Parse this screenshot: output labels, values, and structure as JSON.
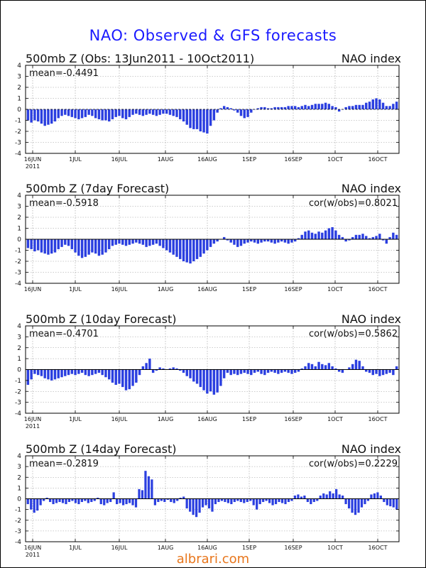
{
  "title": "NAO: Observed & GFS forecasts",
  "watermark": "albrari.com",
  "colors": {
    "bar": "#2b3fe0",
    "title": "#1a1aff",
    "watermark": "#e8761c",
    "grid": "#9a9a9a"
  },
  "chart_data": [
    {
      "type": "bar",
      "title": "500mb Z (Obs: 13Jun2011 - 10Oct2011)",
      "right_label": "NAO index",
      "mean_label": "mean=-0.4491",
      "cor_label": "",
      "ylim": [
        -4,
        4
      ],
      "yticks": [
        "4",
        "3",
        "2",
        "1",
        "0",
        "-1",
        "-2",
        "-3",
        "-4"
      ],
      "xticks": [
        "16JUN",
        "1JUL",
        "16JUL",
        "1AUG",
        "16AUG",
        "1SEP",
        "16SEP",
        "1OCT",
        "16OCT"
      ],
      "xtick_year": "2011",
      "grid": true,
      "zero_line": "dashed",
      "values": [
        -1.0,
        -1.2,
        -1.0,
        -1.1,
        -1.3,
        -1.5,
        -1.4,
        -1.3,
        -1.1,
        -0.8,
        -0.6,
        -0.5,
        -0.6,
        -0.7,
        -0.8,
        -0.9,
        -0.8,
        -0.7,
        -0.5,
        -0.6,
        -0.8,
        -0.9,
        -1.0,
        -1.0,
        -1.1,
        -0.9,
        -0.7,
        -0.6,
        -0.8,
        -0.9,
        -0.7,
        -0.5,
        -0.4,
        -0.5,
        -0.6,
        -0.5,
        -0.4,
        -0.5,
        -0.6,
        -0.5,
        -0.4,
        -0.4,
        -0.5,
        -0.6,
        -0.7,
        -0.9,
        -1.1,
        -1.4,
        -1.7,
        -1.8,
        -1.8,
        -2.0,
        -2.1,
        -2.2,
        -1.5,
        -1.0,
        -0.3,
        0.1,
        0.3,
        0.2,
        0.1,
        -0.1,
        -0.3,
        -0.6,
        -0.8,
        -0.7,
        -0.3,
        0.0,
        0.1,
        0.2,
        0.2,
        0.1,
        0.1,
        0.2,
        0.2,
        0.2,
        0.2,
        0.3,
        0.3,
        0.3,
        0.2,
        0.3,
        0.4,
        0.3,
        0.4,
        0.5,
        0.5,
        0.5,
        0.6,
        0.5,
        0.3,
        0.2,
        -0.2,
        0.0,
        0.2,
        0.3,
        0.3,
        0.4,
        0.4,
        0.4,
        0.6,
        0.7,
        0.9,
        1.0,
        0.9,
        0.6,
        0.3,
        0.3,
        0.5,
        0.7
      ]
    },
    {
      "type": "bar",
      "title": "500mb Z (7day Forecast)",
      "right_label": "NAO index",
      "mean_label": "mean=-0.5918",
      "cor_label": "cor(w/obs)=0.8021",
      "ylim": [
        -4,
        4
      ],
      "yticks": [
        "4",
        "3",
        "2",
        "1",
        "0",
        "-1",
        "-2",
        "-3",
        "-4"
      ],
      "xticks": [
        "16JUN",
        "1JUL",
        "16JUL",
        "1AUG",
        "16AUG",
        "1SEP",
        "16SEP",
        "1OCT",
        "16OCT"
      ],
      "xtick_year": "",
      "grid": true,
      "zero_line": "solid",
      "values": [
        -0.8,
        -0.9,
        -1.1,
        -1.0,
        -1.2,
        -1.3,
        -1.4,
        -1.3,
        -1.2,
        -0.9,
        -0.7,
        -0.5,
        -0.6,
        -0.9,
        -1.2,
        -1.5,
        -1.7,
        -1.6,
        -1.4,
        -1.2,
        -1.3,
        -1.5,
        -1.4,
        -1.2,
        -0.9,
        -0.6,
        -0.5,
        -0.4,
        -0.5,
        -0.6,
        -0.5,
        -0.4,
        -0.3,
        -0.4,
        -0.5,
        -0.7,
        -0.6,
        -0.5,
        -0.4,
        -0.6,
        -0.8,
        -1.0,
        -1.2,
        -1.4,
        -1.6,
        -1.8,
        -2.0,
        -2.1,
        -2.2,
        -2.0,
        -1.8,
        -1.6,
        -1.3,
        -1.0,
        -0.7,
        -0.4,
        -0.2,
        0.0,
        0.2,
        -0.1,
        -0.3,
        -0.5,
        -0.7,
        -0.6,
        -0.4,
        -0.3,
        -0.2,
        -0.3,
        -0.4,
        -0.3,
        -0.2,
        -0.2,
        -0.3,
        -0.4,
        -0.3,
        -0.2,
        -0.3,
        -0.4,
        -0.3,
        -0.2,
        0.1,
        0.4,
        0.7,
        0.8,
        0.6,
        0.5,
        0.7,
        0.6,
        0.8,
        1.0,
        1.1,
        0.8,
        0.4,
        0.2,
        -0.2,
        -0.1,
        0.2,
        0.4,
        0.4,
        0.5,
        0.3,
        0.1,
        0.2,
        0.3,
        0.5,
        -0.1,
        -0.4,
        0.2,
        0.6,
        0.4
      ]
    },
    {
      "type": "bar",
      "title": "500mb Z (10day Forecast)",
      "right_label": "NAO index",
      "mean_label": "mean=-0.4701",
      "cor_label": "cor(w/obs)=0.5862",
      "ylim": [
        -4,
        4
      ],
      "yticks": [
        "4",
        "3",
        "2",
        "1",
        "0",
        "-1",
        "-2",
        "-3",
        "-4"
      ],
      "xticks": [
        "16JUN",
        "1JUL",
        "16JUL",
        "1AUG",
        "16AUG",
        "1SEP",
        "16SEP",
        "1OCT",
        "16OCT"
      ],
      "xtick_year": "2011",
      "grid": true,
      "zero_line": "solid",
      "values": [
        -1.4,
        -0.9,
        -0.4,
        -0.5,
        -0.6,
        -0.8,
        -0.9,
        -1.0,
        -0.9,
        -0.8,
        -0.7,
        -0.6,
        -0.5,
        -0.4,
        -0.5,
        -0.4,
        -0.3,
        -0.5,
        -0.6,
        -0.5,
        -0.4,
        -0.3,
        -0.5,
        -0.7,
        -0.9,
        -1.2,
        -1.4,
        -1.3,
        -1.6,
        -1.9,
        -1.8,
        -1.5,
        -1.2,
        -0.5,
        0.3,
        0.6,
        1.0,
        -0.3,
        -0.1,
        0.2,
        0.1,
        0.0,
        0.1,
        0.2,
        0.1,
        -0.1,
        -0.3,
        -0.6,
        -0.8,
        -1.1,
        -1.3,
        -1.6,
        -1.9,
        -2.2,
        -2.0,
        -2.3,
        -2.1,
        -1.5,
        -0.8,
        -0.3,
        -0.5,
        -0.4,
        -0.5,
        -0.4,
        -0.3,
        -0.4,
        -0.5,
        -0.3,
        -0.2,
        -0.4,
        -0.5,
        -0.3,
        -0.2,
        -0.3,
        -0.4,
        -0.3,
        -0.2,
        -0.3,
        -0.4,
        -0.3,
        -0.2,
        0.1,
        0.3,
        0.6,
        0.5,
        0.3,
        0.7,
        0.5,
        0.4,
        0.6,
        0.3,
        0.1,
        -0.2,
        -0.3,
        0.0,
        0.2,
        0.5,
        0.9,
        0.8,
        0.3,
        -0.2,
        -0.3,
        -0.5,
        -0.4,
        -0.6,
        -0.5,
        -0.4,
        -0.3,
        -0.5,
        0.3
      ]
    },
    {
      "type": "bar",
      "title": "500mb Z (14day Forecast)",
      "right_label": "NAO index",
      "mean_label": "mean=-0.2819",
      "cor_label": "cor(w/obs)=0.2229",
      "ylim": [
        -4,
        4
      ],
      "yticks": [
        "4",
        "3",
        "2",
        "1",
        "0",
        "-1",
        "-2",
        "-3",
        "-4"
      ],
      "xticks": [
        "16JUN",
        "1JUL",
        "16JUL",
        "1AUG",
        "16AUG",
        "1SEP",
        "16SEP",
        "1OCT",
        "16OCT"
      ],
      "xtick_year": "2011",
      "grid": true,
      "zero_line": "solid",
      "values": [
        -0.5,
        -1.0,
        -1.3,
        -1.1,
        -0.6,
        -0.2,
        0.1,
        -0.3,
        -0.5,
        -0.4,
        -0.3,
        -0.4,
        -0.5,
        -0.3,
        -0.2,
        -0.4,
        -0.5,
        -0.3,
        -0.2,
        -0.4,
        -0.3,
        -0.2,
        0.1,
        -0.5,
        -0.6,
        -0.4,
        -0.3,
        0.6,
        -0.5,
        -0.4,
        -0.6,
        -0.5,
        -0.4,
        -0.6,
        -0.8,
        0.9,
        0.8,
        2.6,
        2.1,
        1.8,
        -0.6,
        -0.3,
        -0.2,
        -0.3,
        -0.1,
        -0.3,
        -0.4,
        -0.2,
        0.1,
        0.2,
        -0.9,
        -1.2,
        -1.5,
        -1.7,
        -1.3,
        -0.8,
        -0.6,
        -0.9,
        -1.2,
        -0.5,
        -0.3,
        -0.2,
        -0.3,
        -0.4,
        -0.5,
        -0.3,
        -0.2,
        -0.3,
        -0.4,
        -0.3,
        -0.2,
        -0.6,
        -1.0,
        -0.5,
        -0.3,
        -0.2,
        -0.4,
        -0.6,
        -0.5,
        -0.3,
        -0.4,
        -0.5,
        -0.3,
        -0.2,
        0.3,
        0.4,
        0.2,
        0.3,
        -0.3,
        -0.5,
        -0.3,
        -0.2,
        0.3,
        0.5,
        0.4,
        0.7,
        0.5,
        0.9,
        0.4,
        0.3,
        -0.5,
        -0.9,
        -1.3,
        -1.5,
        -1.3,
        -0.8,
        -0.5,
        -0.2,
        0.4,
        0.5,
        0.6,
        0.3,
        -0.3,
        -0.6,
        -0.7,
        -0.8,
        -1.0
      ]
    }
  ]
}
